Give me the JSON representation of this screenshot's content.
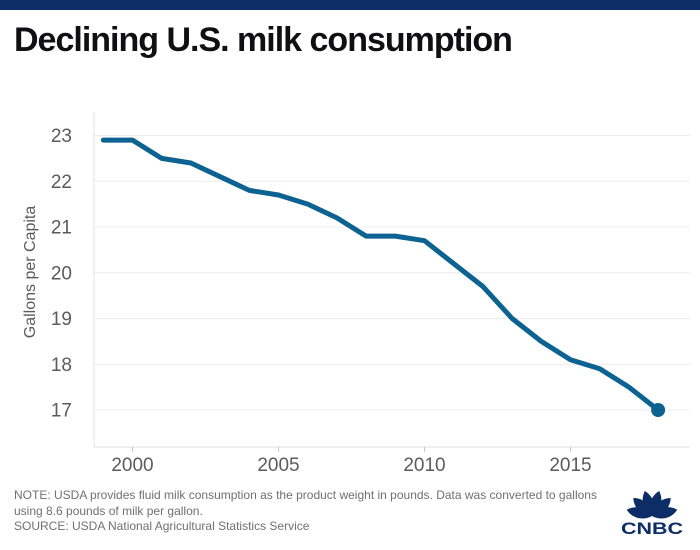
{
  "header": {
    "title": "Declining U.S. milk consumption",
    "accent_color": "#0c2d66"
  },
  "chart_data": {
    "type": "line",
    "title": "Declining U.S. milk consumption",
    "xlabel": "",
    "ylabel": "Gallons per Capita",
    "x": [
      1999,
      2000,
      2001,
      2002,
      2003,
      2004,
      2005,
      2006,
      2007,
      2008,
      2009,
      2010,
      2011,
      2012,
      2013,
      2014,
      2015,
      2016,
      2017,
      2018
    ],
    "values": [
      22.9,
      22.9,
      22.5,
      22.4,
      22.1,
      21.8,
      21.7,
      21.5,
      21.2,
      20.8,
      20.8,
      20.7,
      20.2,
      19.7,
      19.0,
      18.5,
      18.1,
      17.9,
      17.5,
      17.0
    ],
    "x_ticks": [
      2000,
      2005,
      2010,
      2015
    ],
    "y_ticks": [
      17,
      18,
      19,
      20,
      21,
      22,
      23
    ],
    "ylim": [
      16.2,
      23.5
    ],
    "xlim": [
      1998.7,
      2019.1
    ],
    "grid": true,
    "legend_position": "none",
    "line_color": "#0c6291",
    "end_dot": true,
    "gridline_color": "#ececec",
    "axis_line_color": "#e0e0e0",
    "tick_text_color": "#5a5a60"
  },
  "footer": {
    "note_line1": "NOTE: USDA provides fluid milk consumption as the product weight in pounds. Data was converted to gallons",
    "note_line2": "using 8.6 pounds of milk per gallon.",
    "source": "SOURCE: USDA National Agricultural Statistics Service",
    "logo_text": "CNBC"
  }
}
